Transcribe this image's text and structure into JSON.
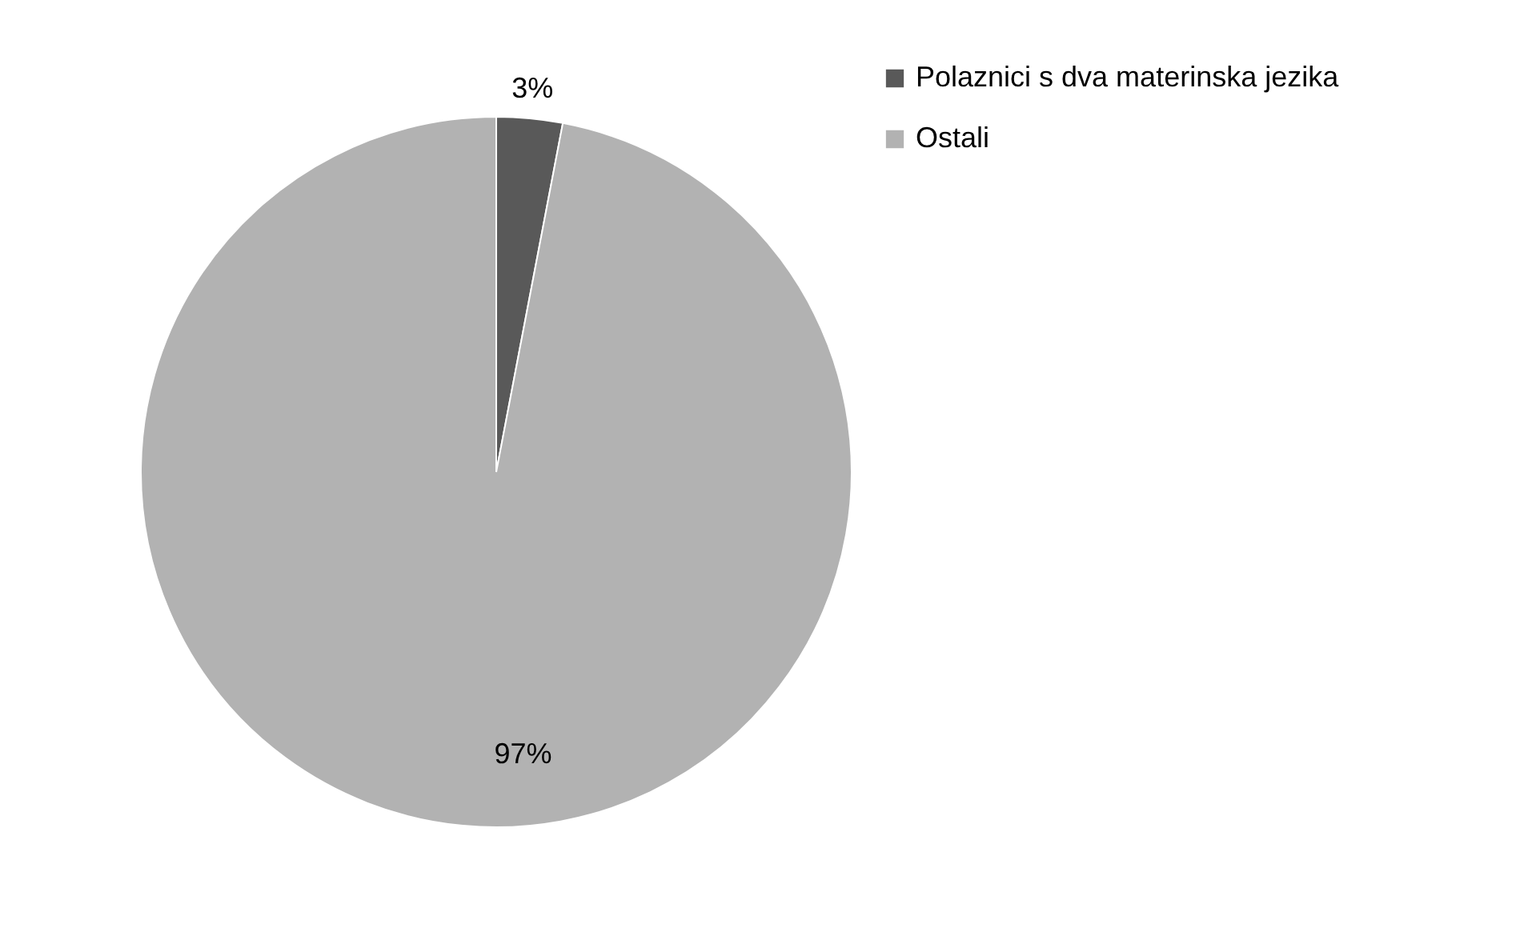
{
  "chart_data": {
    "type": "pie",
    "categories": [
      "Polaznici s dva materinska jezika",
      "Ostali"
    ],
    "values": [
      3,
      97
    ],
    "colors": [
      "#595959",
      "#b2b2b2"
    ],
    "value_labels": [
      "3%",
      "97%"
    ],
    "legend": "right"
  }
}
